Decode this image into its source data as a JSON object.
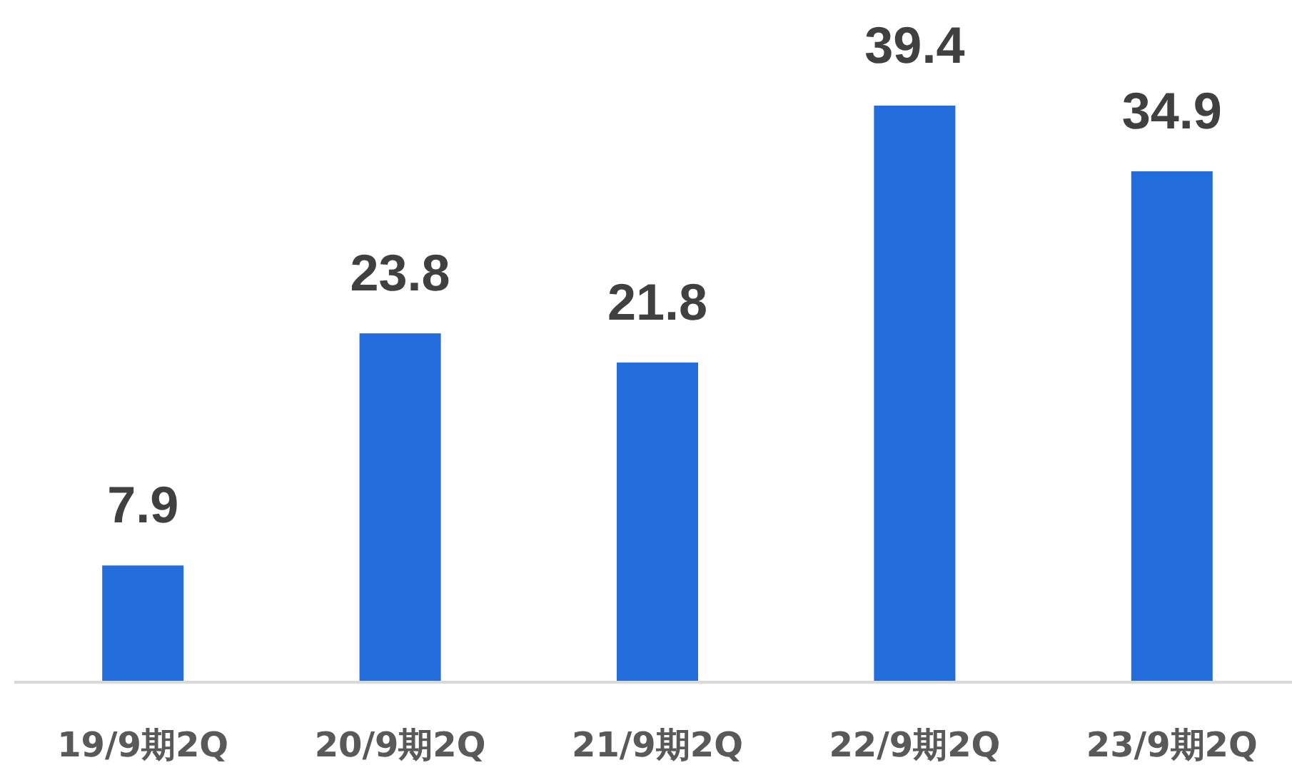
{
  "chart_data": {
    "type": "bar",
    "categories": [
      "19/9期2Q",
      "20/9期2Q",
      "21/9期2Q",
      "22/9期2Q",
      "23/9期2Q"
    ],
    "values": [
      7.9,
      23.8,
      21.8,
      39.4,
      34.9
    ],
    "color": "#226cdc",
    "data_labels": true
  }
}
